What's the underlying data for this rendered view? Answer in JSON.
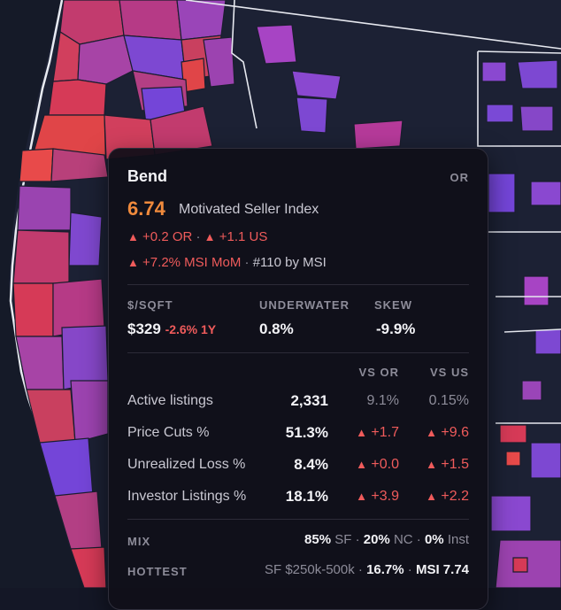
{
  "tooltip": {
    "city": "Bend",
    "state": "OR",
    "score": "6.74",
    "score_label": "Motivated Seller Index",
    "delta_state_arrow": "▲",
    "delta_state": "+0.2 OR",
    "delta_us_arrow": "▲",
    "delta_us": "+1.1 US",
    "mom_arrow": "▲",
    "mom": "+7.2% MSI MoM",
    "rank": "#110 by MSI",
    "separator": "·",
    "stats": [
      {
        "label": "$/SQFT",
        "value": "$329",
        "change": "-2.6% 1Y"
      },
      {
        "label": "UNDERWATER",
        "value": "0.8%",
        "change": ""
      },
      {
        "label": "SKEW",
        "value": "-9.9%",
        "change": ""
      }
    ],
    "compare_headers": {
      "vs_state": "VS OR",
      "vs_us": "VS US"
    },
    "rows": [
      {
        "label": "Active listings",
        "value": "2,331",
        "vs_state": "9.1%",
        "vs_us": "0.15%",
        "arrow_state": "",
        "arrow_us": ""
      },
      {
        "label": "Price Cuts %",
        "value": "51.3%",
        "vs_state": "+1.7",
        "vs_us": "+9.6",
        "arrow_state": "▲",
        "arrow_us": "▲"
      },
      {
        "label": "Unrealized Loss %",
        "value": "8.4%",
        "vs_state": "+0.0",
        "vs_us": "+1.5",
        "arrow_state": "▲",
        "arrow_us": "▲"
      },
      {
        "label": "Investor Listings %",
        "value": "18.1%",
        "vs_state": "+3.9",
        "vs_us": "+2.2",
        "arrow_state": "▲",
        "arrow_us": "▲"
      }
    ],
    "mix": {
      "label": "MIX",
      "sf_value": "85%",
      "sf_label": "SF",
      "nc_value": "20%",
      "nc_label": "NC",
      "inst_value": "0%",
      "inst_label": "Inst"
    },
    "hottest": {
      "label": "HOTTEST",
      "segment": "SF $250k-500k",
      "share": "16.7%",
      "msi": "MSI 7.74"
    }
  },
  "colors": {
    "background": "#141726",
    "ocean": "#151a28",
    "accent_orange": "#f08a3c",
    "positive_red": "#ef5b5b",
    "map_hot": "#d63a57",
    "map_mid": "#a83e9a",
    "map_cool": "#7a49d6"
  }
}
